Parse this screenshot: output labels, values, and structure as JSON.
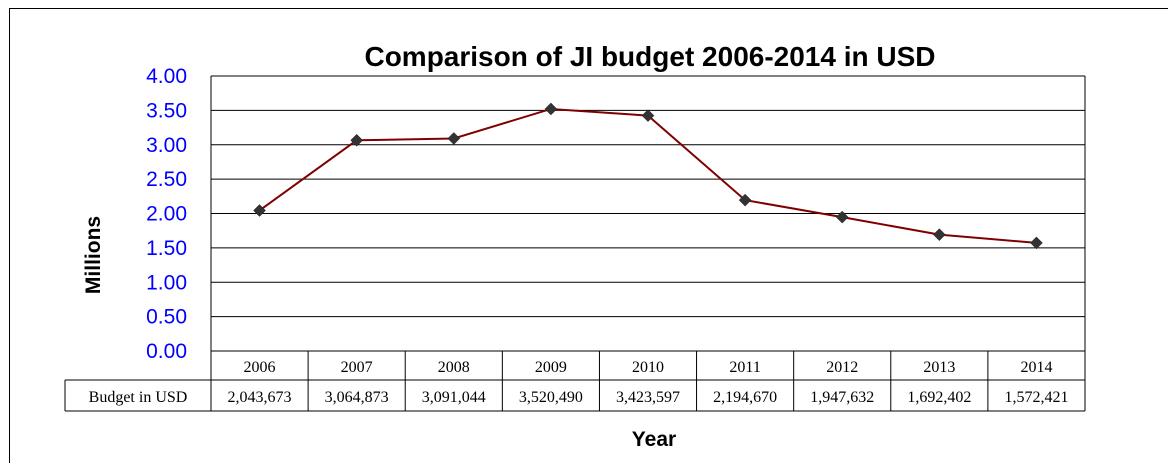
{
  "chart_data": {
    "type": "line",
    "title": "Comparison of JI budget 2006-2014 in USD",
    "xlabel": "Year",
    "ylabel": "Millions",
    "categories": [
      "2006",
      "2007",
      "2008",
      "2009",
      "2010",
      "2011",
      "2012",
      "2013",
      "2014"
    ],
    "yticks": [
      "0.00",
      "0.50",
      "1.00",
      "1.50",
      "2.00",
      "2.50",
      "3.00",
      "3.50",
      "4.00"
    ],
    "ylim": [
      0,
      4
    ],
    "grid": true,
    "series": [
      {
        "name": "Budget in USD",
        "values": [
          2.043673,
          3.064873,
          3.091044,
          3.52049,
          3.423597,
          2.19467,
          1.947632,
          1.692402,
          1.572421
        ],
        "labels": [
          "2,043,673",
          "3,064,873",
          "3,091,044",
          "3,520,490",
          "3,423,597",
          "2,194,670",
          "1,947,632",
          "1,692,402",
          "1,572,421"
        ]
      }
    ],
    "colors": {
      "line": "#800000",
      "marker": "#333333",
      "ytick": "#0000ff"
    }
  }
}
